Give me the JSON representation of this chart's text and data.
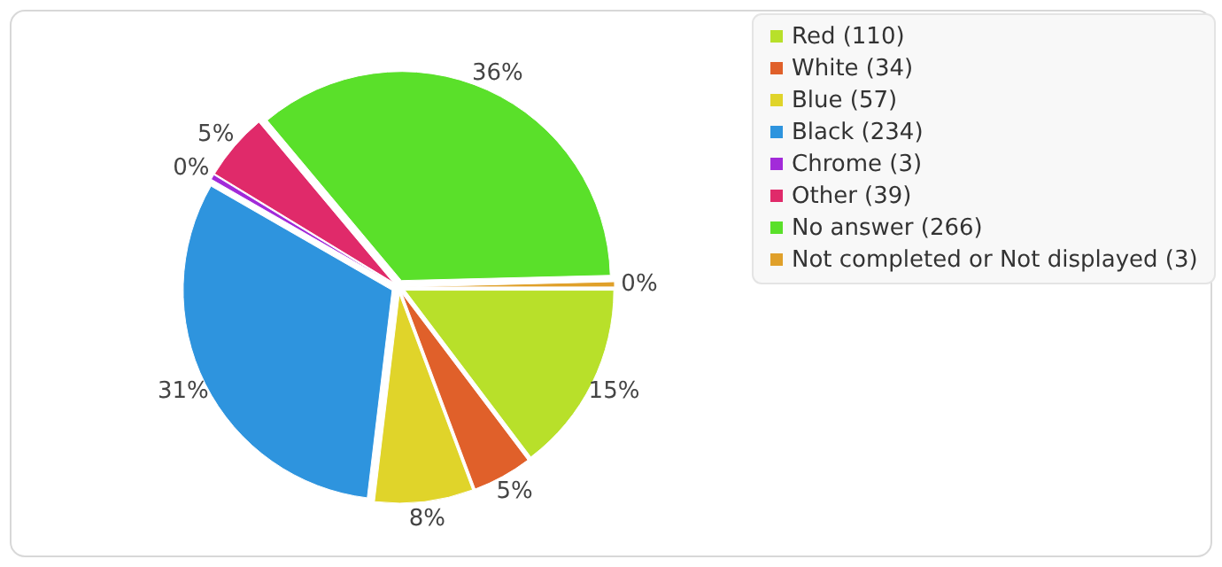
{
  "chart_data": {
    "type": "pie",
    "categories": [
      "Red (110)",
      "White (34)",
      "Blue (57)",
      "Black (234)",
      "Chrome (3)",
      "Other (39)",
      "No answer (266)",
      "Not completed or Not displayed (3)"
    ],
    "values": [
      14.7,
      4.6,
      7.6,
      31.4,
      0.4,
      5.2,
      35.7,
      0.4
    ],
    "colors": [
      "#b8e02a",
      "#e0602a",
      "#e0d42a",
      "#2e94de",
      "#a22ad9",
      "#e02a6a",
      "#5ae02a",
      "#e0a02a"
    ],
    "value_labels": [
      "15%",
      "5%",
      "8%",
      "31%",
      "0%",
      "5%",
      "36%",
      "0%"
    ],
    "legend": "top right"
  }
}
